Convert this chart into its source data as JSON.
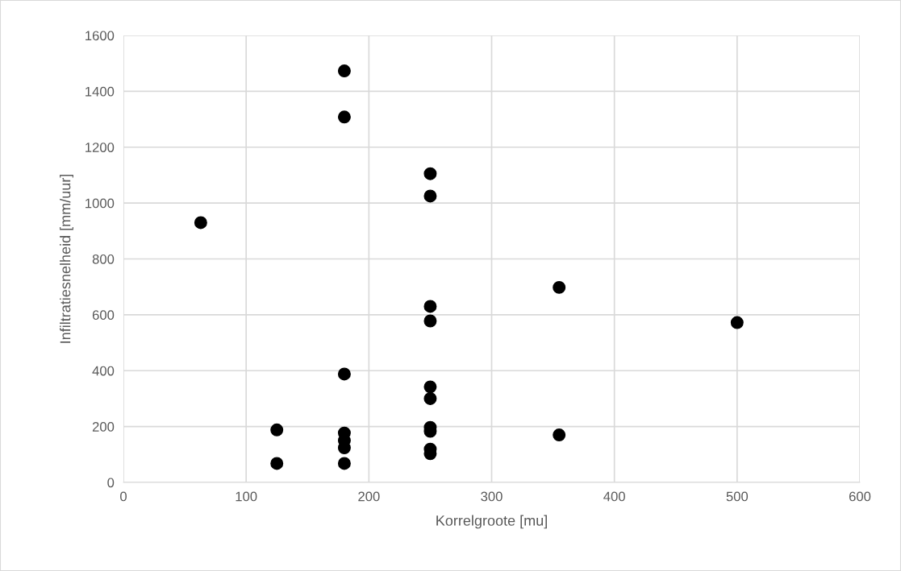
{
  "chart_data": {
    "type": "scatter",
    "xlabel": "Korrelgroote [mu]",
    "ylabel": "Infiltratiesnelheid [mm/uur]",
    "series": [
      {
        "color": "#000000",
        "x": [
          63,
          125,
          125,
          180,
          180,
          180,
          180,
          180,
          180,
          180,
          250,
          250,
          250,
          250,
          250,
          250,
          250,
          250,
          250,
          250,
          355,
          355,
          500
        ],
        "values": [
          930,
          188,
          68,
          1473,
          1308,
          388,
          177,
          150,
          124,
          68,
          1105,
          1025,
          630,
          578,
          342,
          300,
          197,
          183,
          119,
          103,
          698,
          170,
          572
        ]
      }
    ],
    "xlim": [
      0,
      600
    ],
    "xticks": [
      0,
      100,
      200,
      300,
      400,
      500,
      600
    ],
    "ylim": [
      0,
      1600
    ],
    "yticks": [
      0,
      200,
      400,
      600,
      800,
      1000,
      1200,
      1400,
      1600
    ],
    "grid": true,
    "marker": "circle"
  }
}
